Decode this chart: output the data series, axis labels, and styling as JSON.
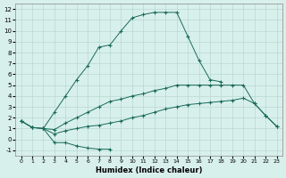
{
  "xlabel": "Humidex (Indice chaleur)",
  "ylabel": "",
  "bg_color": "#d8f0ec",
  "line_color": "#1a6b5a",
  "grid_color": "#b8d8d0",
  "xlim": [
    -0.5,
    23.5
  ],
  "ylim": [
    -1.5,
    12.5
  ],
  "xticks": [
    0,
    1,
    2,
    3,
    4,
    5,
    6,
    7,
    8,
    9,
    10,
    11,
    12,
    13,
    14,
    15,
    16,
    17,
    18,
    19,
    20,
    21,
    22,
    23
  ],
  "yticks": [
    -1,
    0,
    1,
    2,
    3,
    4,
    5,
    6,
    7,
    8,
    9,
    10,
    11,
    12
  ],
  "line1_x": [
    0,
    1,
    2,
    3,
    4,
    5,
    6,
    7,
    8,
    9,
    10,
    11,
    12,
    13,
    14,
    15,
    16,
    17,
    18
  ],
  "line1_y": [
    1.7,
    1.1,
    1.0,
    2.5,
    4.0,
    5.5,
    6.8,
    8.5,
    8.7,
    10.0,
    11.2,
    11.5,
    11.7,
    11.7,
    11.7,
    9.5,
    7.3,
    5.5,
    5.3
  ],
  "line2_x": [
    0,
    1,
    2,
    3,
    4,
    5,
    6,
    7,
    8,
    9,
    10,
    11,
    12,
    13,
    14,
    15,
    16,
    17,
    18,
    19,
    20,
    21,
    22,
    23
  ],
  "line2_y": [
    1.7,
    1.1,
    1.0,
    0.9,
    1.5,
    2.0,
    2.5,
    3.0,
    3.5,
    3.7,
    4.0,
    4.2,
    4.5,
    4.7,
    5.0,
    5.0,
    5.0,
    5.0,
    5.0,
    5.0,
    5.0,
    3.3,
    2.2,
    1.2
  ],
  "line3_x": [
    0,
    1,
    2,
    3,
    4,
    5,
    6,
    7,
    8,
    9,
    10,
    11,
    12,
    13,
    14,
    15,
    16,
    17,
    18,
    19,
    20,
    21,
    22,
    23
  ],
  "line3_y": [
    1.7,
    1.1,
    1.0,
    0.5,
    0.8,
    1.0,
    1.2,
    1.3,
    1.5,
    1.7,
    2.0,
    2.2,
    2.5,
    2.8,
    3.0,
    3.2,
    3.3,
    3.4,
    3.5,
    3.6,
    3.8,
    3.3,
    2.2,
    1.2
  ],
  "line4_x": [
    2,
    3,
    4,
    5,
    6,
    7,
    8
  ],
  "line4_y": [
    1.0,
    -0.3,
    -0.3,
    -0.6,
    -0.8,
    -0.9,
    -0.9
  ]
}
